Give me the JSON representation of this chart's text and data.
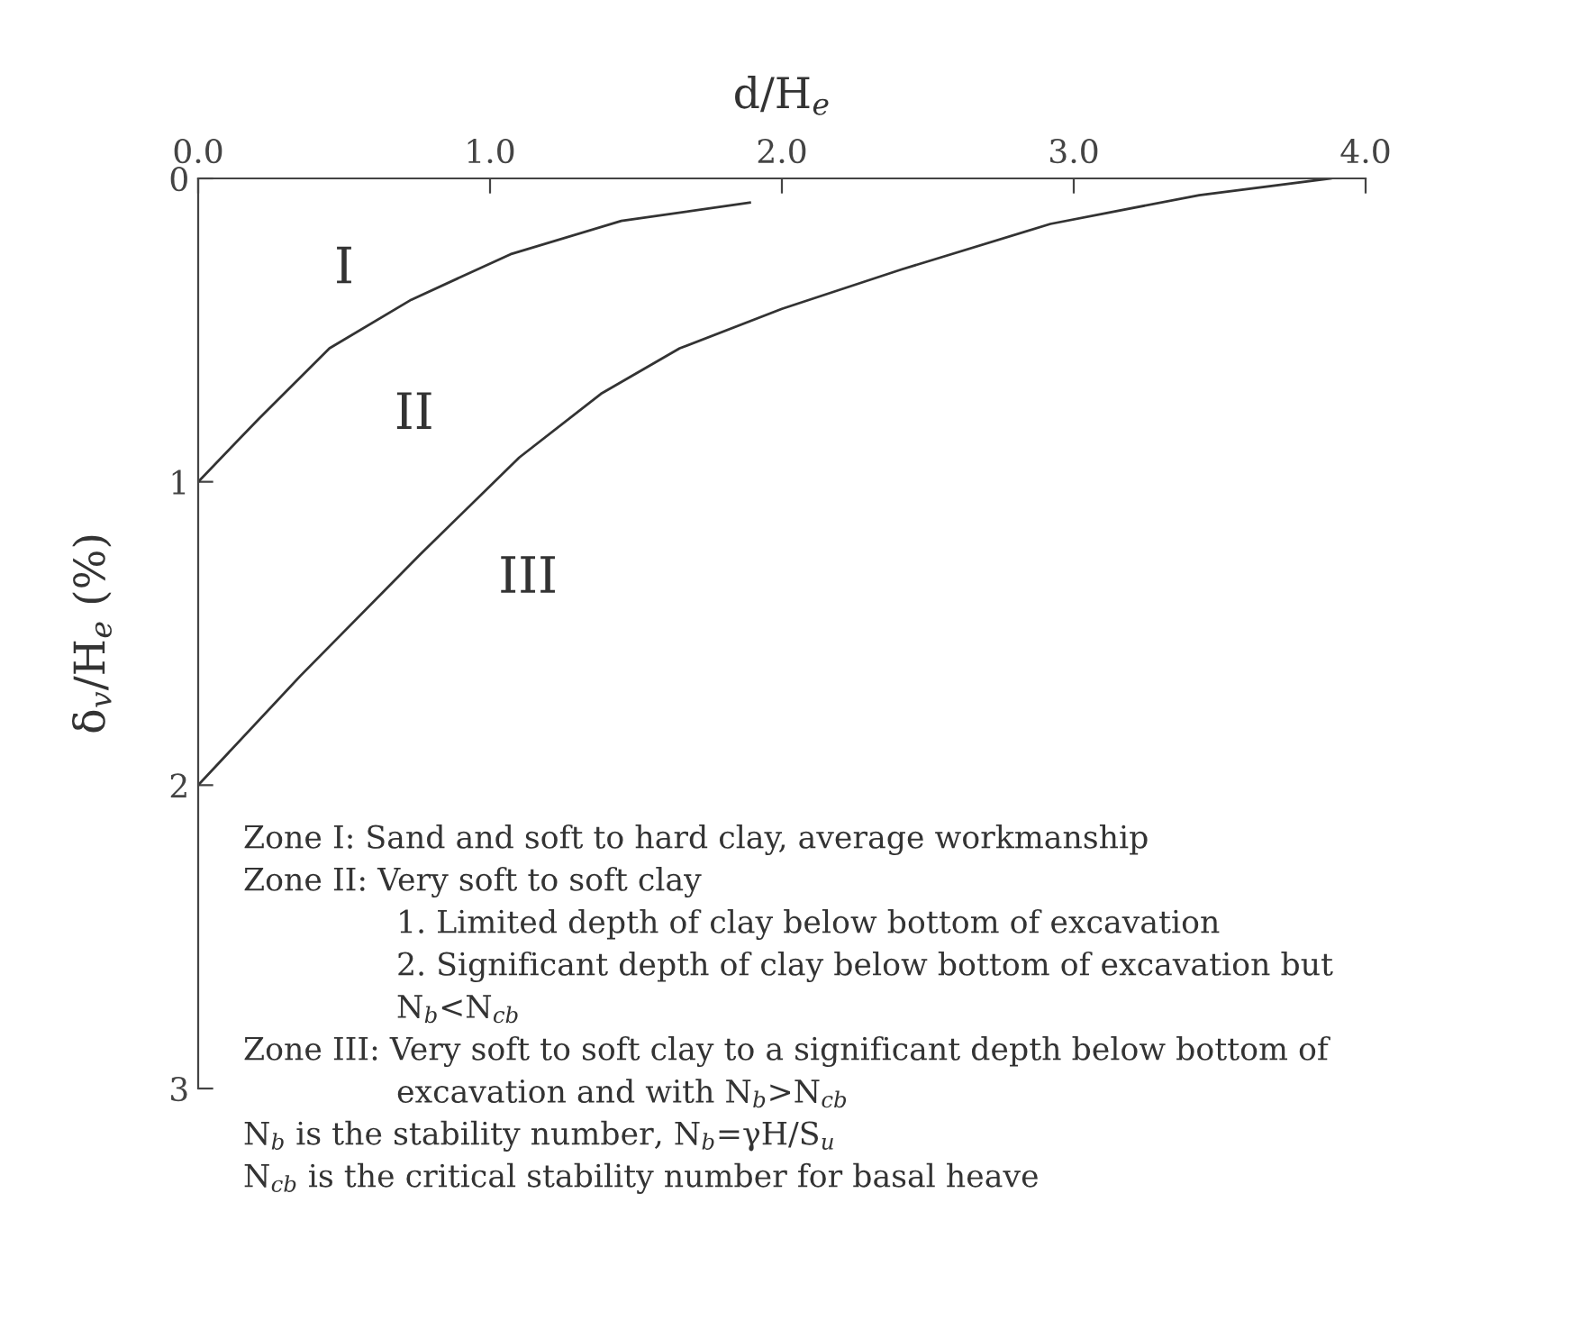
{
  "chart_data": {
    "type": "line",
    "xlabel": "d/H$_{e}$",
    "ylabel": "δ$_{v}$/H$_{e}$ (%)",
    "xlim": [
      0,
      4
    ],
    "ylim": [
      3,
      0
    ],
    "xticks": [
      {
        "value": 0,
        "label": "0.0"
      },
      {
        "value": 1,
        "label": "1.0"
      },
      {
        "value": 2,
        "label": "2.0"
      },
      {
        "value": 3,
        "label": "3.0"
      },
      {
        "value": 4,
        "label": "4.0"
      }
    ],
    "yticks": [
      0,
      1,
      2,
      3
    ],
    "grid": false,
    "legend": false,
    "marker": "none",
    "line_style": "solid",
    "series": [
      {
        "color": "#333333",
        "x": [
          0,
          0.21,
          0.45,
          0.73,
          1.07,
          1.45,
          1.89
        ],
        "values": [
          1,
          0.79,
          0.56,
          0.4,
          0.25,
          0.14,
          0.08
        ]
      },
      {
        "color": "#333333",
        "x": [
          0,
          0.35,
          0.76,
          1.1,
          1.38,
          1.65,
          2.0,
          2.41,
          2.92,
          3.43,
          3.88
        ],
        "values": [
          2,
          1.64,
          1.24,
          0.92,
          0.71,
          0.56,
          0.43,
          0.3,
          0.15,
          0.055,
          0
        ]
      }
    ],
    "annotations": [
      "I",
      "II",
      "III",
      "Zone I: Sand and soft to hard clay, average workmanship",
      "Zone II: Very soft to soft clay",
      "1. Limited depth of clay below bottom of excavation",
      "2. Significant depth of clay below bottom of excavation but N$_{b}$<N$_{cb}$",
      "Zone III: Very soft to soft clay to a significant depth below bottom of excavation and with N$_{b}$>N$_{cb}$",
      "N$_{b}$ is the stability number, N$_{b}$=γH/S$_{u}$",
      "N$_{cb}$ is the critical stability number for basal heave"
    ]
  }
}
